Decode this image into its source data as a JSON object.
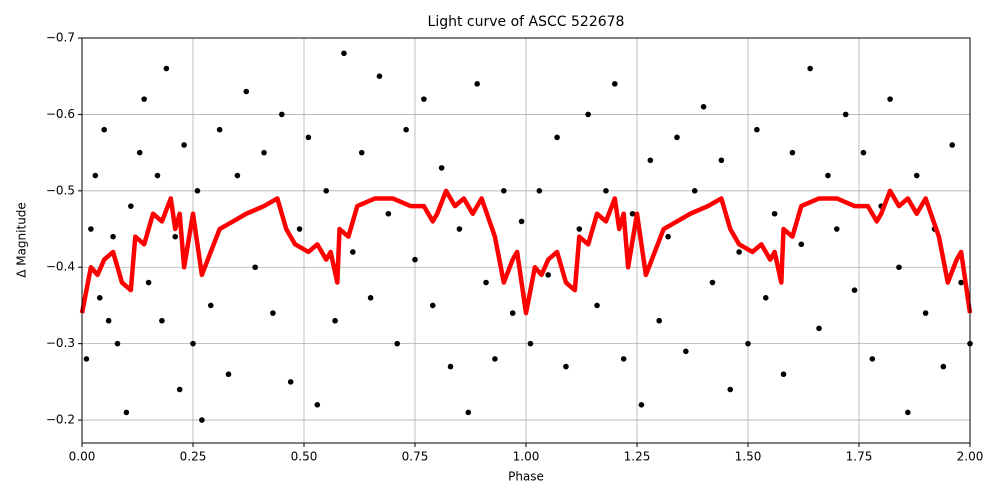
{
  "chart_data": {
    "type": "scatter",
    "title": "Light curve of ASCC 522678",
    "x_label": "Phase",
    "y_label": "Δ Magnitude",
    "xlim": [
      0,
      2
    ],
    "ylim": [
      -0.17,
      -0.7
    ],
    "y_inverted": true,
    "grid": true,
    "xticks": [
      {
        "value": 0,
        "label": "0.00"
      },
      0.25,
      {
        "value": 0.5,
        "label": "0.50"
      },
      0.75,
      {
        "value": 1,
        "label": "1.00"
      },
      1.25,
      {
        "value": 1.5,
        "label": "1.50"
      },
      1.75,
      {
        "value": 2,
        "label": "2.00"
      }
    ],
    "yticks": [
      {
        "value": -0.7,
        "label": "−0.7"
      },
      {
        "value": -0.6,
        "label": "−0.6"
      },
      {
        "value": -0.5,
        "label": "−0.5"
      },
      {
        "value": -0.4,
        "label": "−0.4"
      },
      {
        "value": -0.3,
        "label": "−0.3"
      },
      {
        "value": -0.2,
        "label": "−0.2"
      }
    ],
    "series": [
      {
        "style": "points",
        "color": "#000000",
        "x": [
          0.01,
          0.02,
          0.03,
          0.04,
          0.05,
          0.06,
          0.07,
          0.08,
          0.1,
          0.11,
          0.13,
          0.14,
          0.15,
          0.17,
          0.18,
          0.19,
          0.21,
          0.22,
          0.23,
          0.25,
          0.26,
          0.27,
          0.29,
          0.31,
          0.33,
          0.35,
          0.37,
          0.39,
          0.41,
          0.43,
          0.45,
          0.47,
          0.49,
          0.51,
          0.53,
          0.55,
          0.57,
          0.59,
          0.61,
          0.63,
          0.65,
          0.67,
          0.69,
          0.71,
          0.73,
          0.75,
          0.77,
          0.79,
          0.81,
          0.83,
          0.85,
          0.87,
          0.89,
          0.91,
          0.93,
          0.95,
          0.97,
          0.99,
          1.01,
          1.03,
          1.05,
          1.07,
          1.09,
          1.12,
          1.14,
          1.16,
          1.18,
          1.2,
          1.22,
          1.24,
          1.26,
          1.28,
          1.3,
          1.32,
          1.34,
          1.36,
          1.38,
          1.4,
          1.42,
          1.44,
          1.46,
          1.48,
          1.5,
          1.52,
          1.54,
          1.56,
          1.58,
          1.6,
          1.62,
          1.64,
          1.66,
          1.68,
          1.7,
          1.72,
          1.74,
          1.76,
          1.78,
          1.8,
          1.82,
          1.84,
          1.86,
          1.88,
          1.9,
          1.92,
          1.94,
          1.96,
          1.98,
          2.0
        ],
        "values": [
          -0.28,
          -0.45,
          -0.52,
          -0.36,
          -0.58,
          -0.33,
          -0.44,
          -0.3,
          -0.21,
          -0.48,
          -0.55,
          -0.62,
          -0.38,
          -0.52,
          -0.33,
          -0.66,
          -0.44,
          -0.24,
          -0.56,
          -0.3,
          -0.5,
          -0.2,
          -0.35,
          -0.58,
          -0.26,
          -0.52,
          -0.63,
          -0.4,
          -0.55,
          -0.34,
          -0.6,
          -0.25,
          -0.45,
          -0.57,
          -0.22,
          -0.5,
          -0.33,
          -0.68,
          -0.42,
          -0.55,
          -0.36,
          -0.65,
          -0.47,
          -0.3,
          -0.58,
          -0.41,
          -0.62,
          -0.35,
          -0.53,
          -0.27,
          -0.45,
          -0.21,
          -0.64,
          -0.38,
          -0.28,
          -0.5,
          -0.34,
          -0.46,
          -0.3,
          -0.5,
          -0.39,
          -0.57,
          -0.27,
          -0.45,
          -0.6,
          -0.35,
          -0.5,
          -0.64,
          -0.28,
          -0.47,
          -0.22,
          -0.54,
          -0.33,
          -0.44,
          -0.57,
          -0.29,
          -0.5,
          -0.61,
          -0.38,
          -0.54,
          -0.24,
          -0.42,
          -0.3,
          -0.58,
          -0.36,
          -0.47,
          -0.26,
          -0.55,
          -0.43,
          -0.66,
          -0.32,
          -0.52,
          -0.45,
          -0.6,
          -0.37,
          -0.55,
          -0.28,
          -0.48,
          -0.62,
          -0.4,
          -0.21,
          -0.52,
          -0.34,
          -0.45,
          -0.27,
          -0.56,
          -0.38,
          -0.3
        ]
      },
      {
        "style": "line",
        "color": "#ff0000",
        "x": [
          0,
          0.02,
          0.035,
          0.05,
          0.07,
          0.09,
          0.11,
          0.12,
          0.14,
          0.16,
          0.18,
          0.2,
          0.21,
          0.22,
          0.23,
          0.25,
          0.27,
          0.29,
          0.31,
          0.34,
          0.37,
          0.41,
          0.44,
          0.46,
          0.48,
          0.51,
          0.53,
          0.55,
          0.56,
          0.575,
          0.58,
          0.6,
          0.62,
          0.66,
          0.7,
          0.74,
          0.77,
          0.79,
          0.8,
          0.82,
          0.84,
          0.86,
          0.88,
          0.9,
          0.93,
          0.95,
          0.97,
          0.98,
          1.0,
          1.02,
          1.035,
          1.05,
          1.07,
          1.09,
          1.11,
          1.12,
          1.14,
          1.16,
          1.18,
          1.2,
          1.21,
          1.22,
          1.23,
          1.25,
          1.27,
          1.29,
          1.31,
          1.34,
          1.37,
          1.41,
          1.44,
          1.46,
          1.48,
          1.51,
          1.53,
          1.55,
          1.56,
          1.575,
          1.58,
          1.6,
          1.62,
          1.66,
          1.7,
          1.74,
          1.77,
          1.79,
          1.8,
          1.82,
          1.84,
          1.86,
          1.88,
          1.9,
          1.93,
          1.95,
          1.97,
          1.98,
          2.0
        ],
        "values": [
          -0.34,
          -0.4,
          -0.39,
          -0.41,
          -0.42,
          -0.38,
          -0.37,
          -0.44,
          -0.43,
          -0.47,
          -0.46,
          -0.49,
          -0.45,
          -0.47,
          -0.4,
          -0.47,
          -0.39,
          -0.42,
          -0.45,
          -0.46,
          -0.47,
          -0.48,
          -0.49,
          -0.45,
          -0.43,
          -0.42,
          -0.43,
          -0.41,
          -0.42,
          -0.38,
          -0.45,
          -0.44,
          -0.48,
          -0.49,
          -0.49,
          -0.48,
          -0.48,
          -0.46,
          -0.47,
          -0.5,
          -0.48,
          -0.49,
          -0.47,
          -0.49,
          -0.44,
          -0.38,
          -0.41,
          -0.42,
          -0.34,
          -0.4,
          -0.39,
          -0.41,
          -0.42,
          -0.38,
          -0.37,
          -0.44,
          -0.43,
          -0.47,
          -0.46,
          -0.49,
          -0.45,
          -0.47,
          -0.4,
          -0.47,
          -0.39,
          -0.42,
          -0.45,
          -0.46,
          -0.47,
          -0.48,
          -0.49,
          -0.45,
          -0.43,
          -0.42,
          -0.43,
          -0.41,
          -0.42,
          -0.38,
          -0.45,
          -0.44,
          -0.48,
          -0.49,
          -0.49,
          -0.48,
          -0.48,
          -0.46,
          -0.47,
          -0.5,
          -0.48,
          -0.49,
          -0.47,
          -0.49,
          -0.44,
          -0.38,
          -0.41,
          -0.42,
          -0.34
        ]
      }
    ]
  }
}
